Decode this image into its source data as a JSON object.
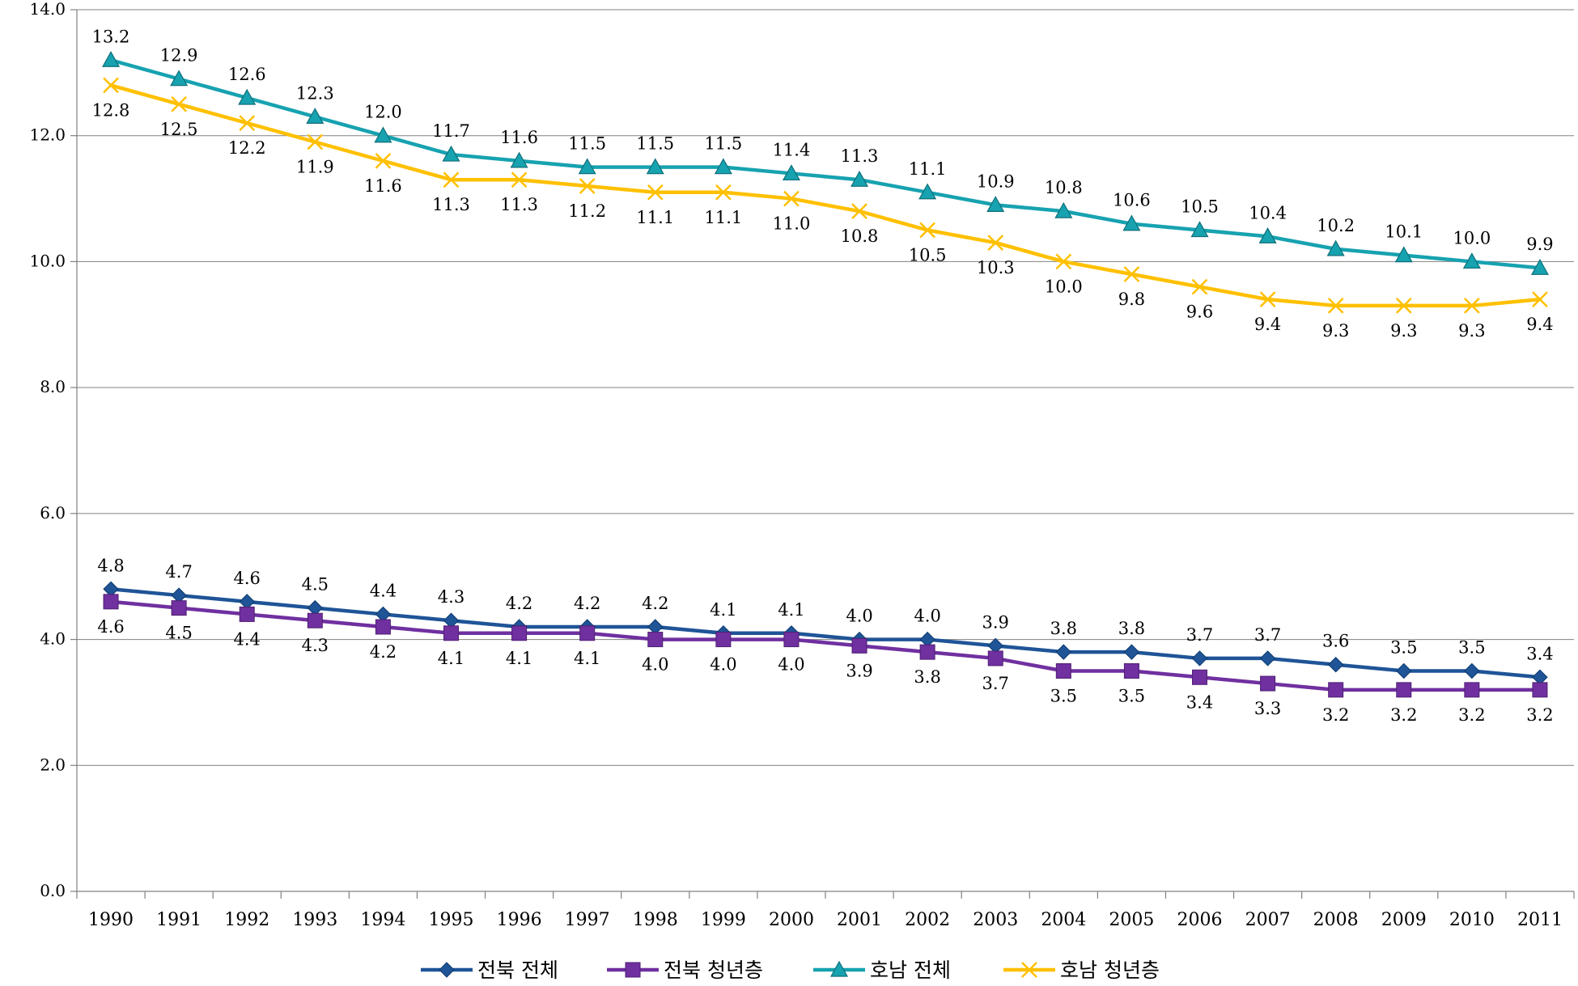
{
  "chart_data": {
    "type": "line",
    "x": [
      "1990",
      "1991",
      "1992",
      "1993",
      "1994",
      "1995",
      "1996",
      "1997",
      "1998",
      "1999",
      "2000",
      "2001",
      "2002",
      "2003",
      "2004",
      "2005",
      "2006",
      "2007",
      "2008",
      "2009",
      "2010",
      "2011"
    ],
    "ylim": [
      0,
      14
    ],
    "yticks": [
      "0.0",
      "2.0",
      "4.0",
      "6.0",
      "8.0",
      "10.0",
      "12.0",
      "14.0"
    ],
    "grid": true,
    "legend_position": "bottom",
    "series": [
      {
        "name": "전북 전체",
        "color": "#1F5497",
        "marker": "diamond",
        "label_position": "above",
        "values": [
          4.8,
          4.7,
          4.6,
          4.5,
          4.4,
          4.3,
          4.2,
          4.2,
          4.2,
          4.1,
          4.1,
          4.0,
          4.0,
          3.9,
          3.8,
          3.8,
          3.7,
          3.7,
          3.6,
          3.5,
          3.5,
          3.4
        ],
        "labels": [
          "4.8",
          "4.7",
          "4.6",
          "4.5",
          "4.4",
          "4.3",
          "4.2",
          "4.2",
          "4.2",
          "4.1",
          "4.1",
          "4.0",
          "4.0",
          "3.9",
          "3.8",
          "3.8",
          "3.7",
          "3.7",
          "3.6",
          "3.5",
          "3.5",
          "3.4"
        ]
      },
      {
        "name": "전북 청년층",
        "color": "#7030A0",
        "marker": "square",
        "label_position": "below",
        "values": [
          4.6,
          4.5,
          4.4,
          4.3,
          4.2,
          4.1,
          4.1,
          4.1,
          4.0,
          4.0,
          4.0,
          3.9,
          3.8,
          3.7,
          3.5,
          3.5,
          3.4,
          3.3,
          3.2,
          3.2,
          3.2,
          3.2
        ],
        "labels": [
          "4.6",
          "4.5",
          "4.4",
          "4.3",
          "4.2",
          "4.1",
          "4.1",
          "4.1",
          "4.0",
          "4.0",
          "4.0",
          "3.9",
          "3.8",
          "3.7",
          "3.5",
          "3.5",
          "3.4",
          "3.3",
          "3.2",
          "3.2",
          "3.2",
          "3.2"
        ]
      },
      {
        "name": "호남 전체",
        "color": "#17A2B0",
        "marker": "triangle",
        "label_position": "above",
        "values": [
          13.2,
          12.9,
          12.6,
          12.3,
          12.0,
          11.7,
          11.6,
          11.5,
          11.5,
          11.5,
          11.4,
          11.3,
          11.1,
          10.9,
          10.8,
          10.6,
          10.5,
          10.4,
          10.2,
          10.1,
          10.0,
          9.9
        ],
        "labels": [
          "13.2",
          "12.9",
          "12.6",
          "12.3",
          "12.0",
          "11.7",
          "11.6",
          "11.5",
          "11.5",
          "11.5",
          "11.4",
          "11.3",
          "11.1",
          "10.9",
          "10.8",
          "10.6",
          "10.5",
          "10.4",
          "10.2",
          "10.1",
          "10.0",
          "9.9"
        ]
      },
      {
        "name": "호남 청년층",
        "color": "#FFC000",
        "marker": "x",
        "label_position": "below",
        "values": [
          12.8,
          12.5,
          12.2,
          11.9,
          11.6,
          11.3,
          11.3,
          11.2,
          11.1,
          11.1,
          11.0,
          10.8,
          10.5,
          10.3,
          10.0,
          9.8,
          9.6,
          9.4,
          9.3,
          9.3,
          9.3,
          9.4
        ],
        "labels": [
          "12.8",
          "12.5",
          "12.2",
          "11.9",
          "11.6",
          "11.3",
          "11.3",
          "11.2",
          "11.1",
          "11.1",
          "11.0",
          "10.8",
          "10.5",
          "10.3",
          "10.0",
          "9.8",
          "9.6",
          "9.4",
          "9.3",
          "9.3",
          "9.3",
          "9.4"
        ]
      }
    ]
  }
}
